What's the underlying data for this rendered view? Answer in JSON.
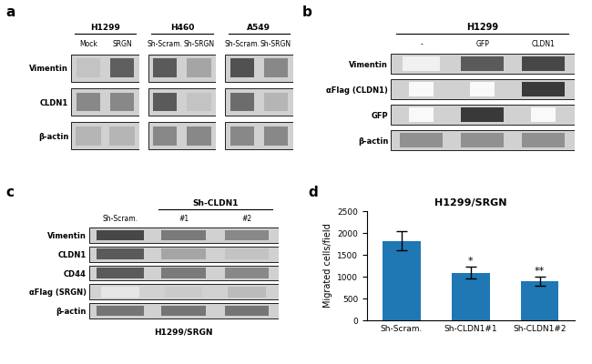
{
  "chart_data": [
    {
      "type": "blot",
      "panel": "a",
      "rows": [
        "Vimentin",
        "CLDN1",
        "β-actin"
      ],
      "groups": [
        {
          "title": "H1299",
          "categories": [
            "Mock",
            "SRGN"
          ],
          "values": [
            [
              0.35,
              0.7
            ],
            [
              0.55,
              0.55
            ],
            [
              0.4,
              0.4
            ]
          ],
          "widths": [
            [
              0.7,
              0.7
            ],
            [
              0.7,
              0.7
            ],
            [
              0.75,
              0.75
            ]
          ]
        },
        {
          "title": "H460",
          "categories": [
            "Sh-Scram.",
            "Sh-SRGN"
          ],
          "values": [
            [
              0.72,
              0.45
            ],
            [
              0.72,
              0.35
            ],
            [
              0.55,
              0.55
            ]
          ],
          "widths": [
            [
              0.7,
              0.7
            ],
            [
              0.7,
              0.7
            ],
            [
              0.7,
              0.7
            ]
          ]
        },
        {
          "title": "A549",
          "categories": [
            "Sh-Scram.",
            "Sh-SRGN"
          ],
          "values": [
            [
              0.75,
              0.55
            ],
            [
              0.65,
              0.4
            ],
            [
              0.55,
              0.55
            ]
          ],
          "widths": [
            [
              0.7,
              0.7
            ],
            [
              0.7,
              0.7
            ],
            [
              0.7,
              0.7
            ]
          ]
        }
      ]
    },
    {
      "type": "blot",
      "panel": "b",
      "title": "H1299",
      "categories": [
        "-",
        "GFP",
        "CLDN1"
      ],
      "rows": [
        "Vimentin",
        "αFlag (CLDN1)",
        "GFP",
        "β-actin"
      ],
      "values": [
        [
          0.12,
          0.72,
          0.78
        ],
        [
          0.05,
          0.05,
          0.82
        ],
        [
          0.05,
          0.82,
          0.05
        ],
        [
          0.52,
          0.52,
          0.52
        ]
      ],
      "widths": [
        [
          0.6,
          0.7,
          0.7
        ],
        [
          0.4,
          0.4,
          0.7
        ],
        [
          0.4,
          0.7,
          0.4
        ],
        [
          0.7,
          0.7,
          0.7
        ]
      ]
    },
    {
      "type": "blot",
      "panel": "c",
      "bracket": {
        "label": "Sh-CLDN1",
        "categories": [
          "#1",
          "#2"
        ]
      },
      "categories": [
        "Sh-Scram.",
        "#1",
        "#2"
      ],
      "rows": [
        "Vimentin",
        "CLDN1",
        "CD44",
        "αFlag (SRGN)",
        "β-actin"
      ],
      "subtitle": "H1299/SRGN",
      "values": [
        [
          0.78,
          0.6,
          0.55
        ],
        [
          0.72,
          0.45,
          0.35
        ],
        [
          0.72,
          0.6,
          0.55
        ],
        [
          0.18,
          0.32,
          0.38
        ],
        [
          0.62,
          0.62,
          0.62
        ]
      ],
      "widths": [
        [
          0.75,
          0.7,
          0.7
        ],
        [
          0.75,
          0.7,
          0.7
        ],
        [
          0.75,
          0.7,
          0.7
        ],
        [
          0.6,
          0.6,
          0.6
        ],
        [
          0.75,
          0.7,
          0.7
        ]
      ]
    },
    {
      "type": "bar",
      "panel": "d",
      "title": "H1299/SRGN",
      "categories": [
        "Sh-Scram.",
        "Sh-CLDN1#1",
        "Sh-CLDN1#2"
      ],
      "values": [
        1820,
        1090,
        890
      ],
      "errors": [
        220,
        130,
        100
      ],
      "significance": [
        null,
        "*",
        "**"
      ],
      "ylabel": "Migrated cells/field",
      "ylim": [
        0,
        2500
      ],
      "yticks": [
        0,
        500,
        1000,
        1500,
        2000,
        2500
      ]
    }
  ]
}
